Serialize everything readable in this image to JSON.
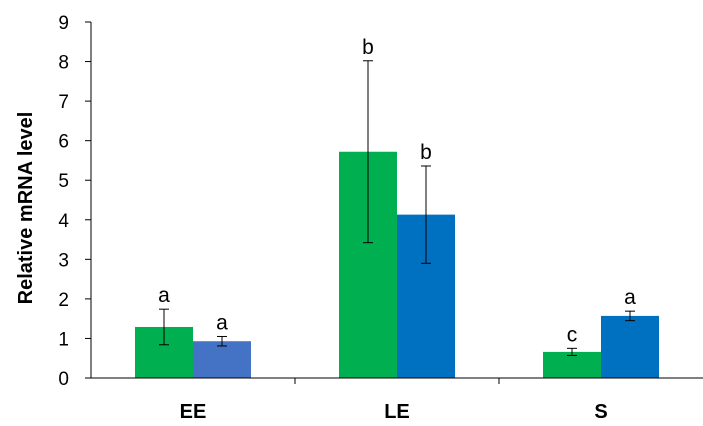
{
  "chart_data": {
    "type": "bar",
    "title": "",
    "xlabel": "",
    "ylabel": "Relative mRNA  level",
    "ylim": [
      0,
      9
    ],
    "yticks": [
      "0",
      "1",
      "2",
      "3",
      "4",
      "5",
      "6",
      "7",
      "8",
      "9"
    ],
    "grid": false,
    "legend": "none",
    "categories": [
      "EE",
      "LE",
      "S"
    ],
    "series": [
      {
        "color": "#00b050",
        "values": [
          1.29,
          5.72,
          0.66
        ],
        "errors": [
          0.45,
          2.3,
          0.09
        ],
        "sig_labels": [
          "a",
          "b",
          "c"
        ]
      },
      {
        "colors": [
          "#4472c4",
          "#0070c0",
          "#0070c0"
        ],
        "values": [
          0.93,
          4.13,
          1.57
        ],
        "errors": [
          0.12,
          1.23,
          0.12
        ],
        "sig_labels": [
          "a",
          "b",
          "a"
        ]
      }
    ]
  }
}
